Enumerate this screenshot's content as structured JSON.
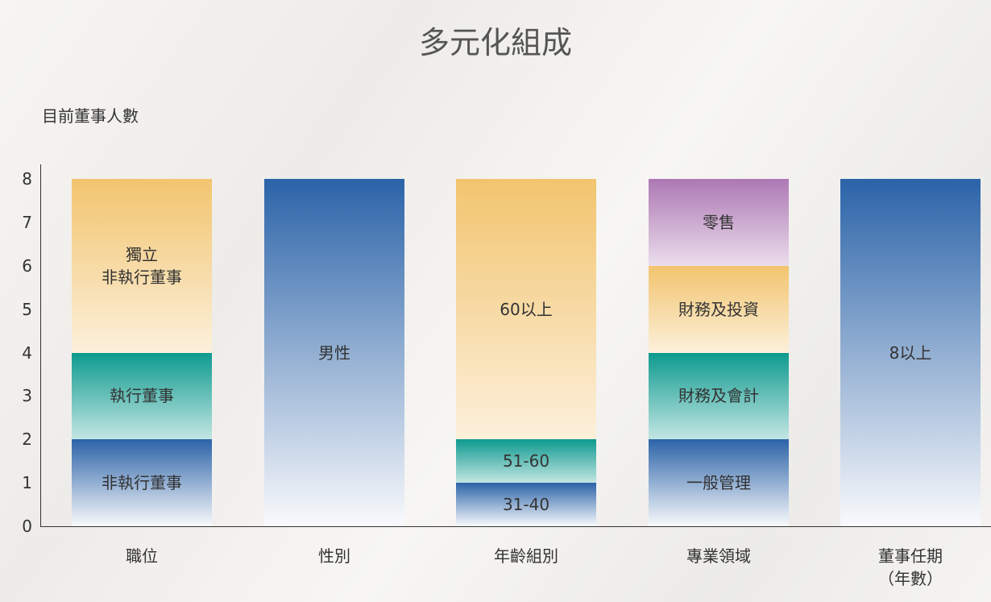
{
  "chart_data": {
    "type": "stacked-bar",
    "title": "多元化組成",
    "ylabel": "目前董事人數",
    "ylim": [
      0,
      8
    ],
    "yticks": [
      0,
      1,
      2,
      3,
      4,
      5,
      6,
      7,
      8
    ],
    "categories": [
      "職位",
      "性別",
      "年齡組別",
      "專業領域",
      "董事任期\n（年數）"
    ],
    "segments": [
      [
        {
          "label": "非執行董事",
          "value": 2,
          "color": "#2b63a8"
        },
        {
          "label": "執行董事",
          "value": 2,
          "color": "#0e9a8f"
        },
        {
          "label": "獨立\n非執行董事",
          "value": 4,
          "color": "#f2c46e"
        }
      ],
      [
        {
          "label": "男性",
          "value": 8,
          "color": "#2b63a8"
        }
      ],
      [
        {
          "label": "31-40",
          "value": 1,
          "color": "#2b63a8"
        },
        {
          "label": "51-60",
          "value": 1,
          "color": "#0e9a8f"
        },
        {
          "label": "60以上",
          "value": 6,
          "color": "#f2c46e"
        }
      ],
      [
        {
          "label": "一般管理",
          "value": 2,
          "color": "#2b63a8"
        },
        {
          "label": "財務及會計",
          "value": 2,
          "color": "#0e9a8f"
        },
        {
          "label": "財務及投資",
          "value": 2,
          "color": "#f2c46e"
        },
        {
          "label": "零售",
          "value": 2,
          "color": "#ad78b4"
        }
      ],
      [
        {
          "label": "8以上",
          "value": 8,
          "color": "#2b63a8"
        }
      ]
    ]
  }
}
